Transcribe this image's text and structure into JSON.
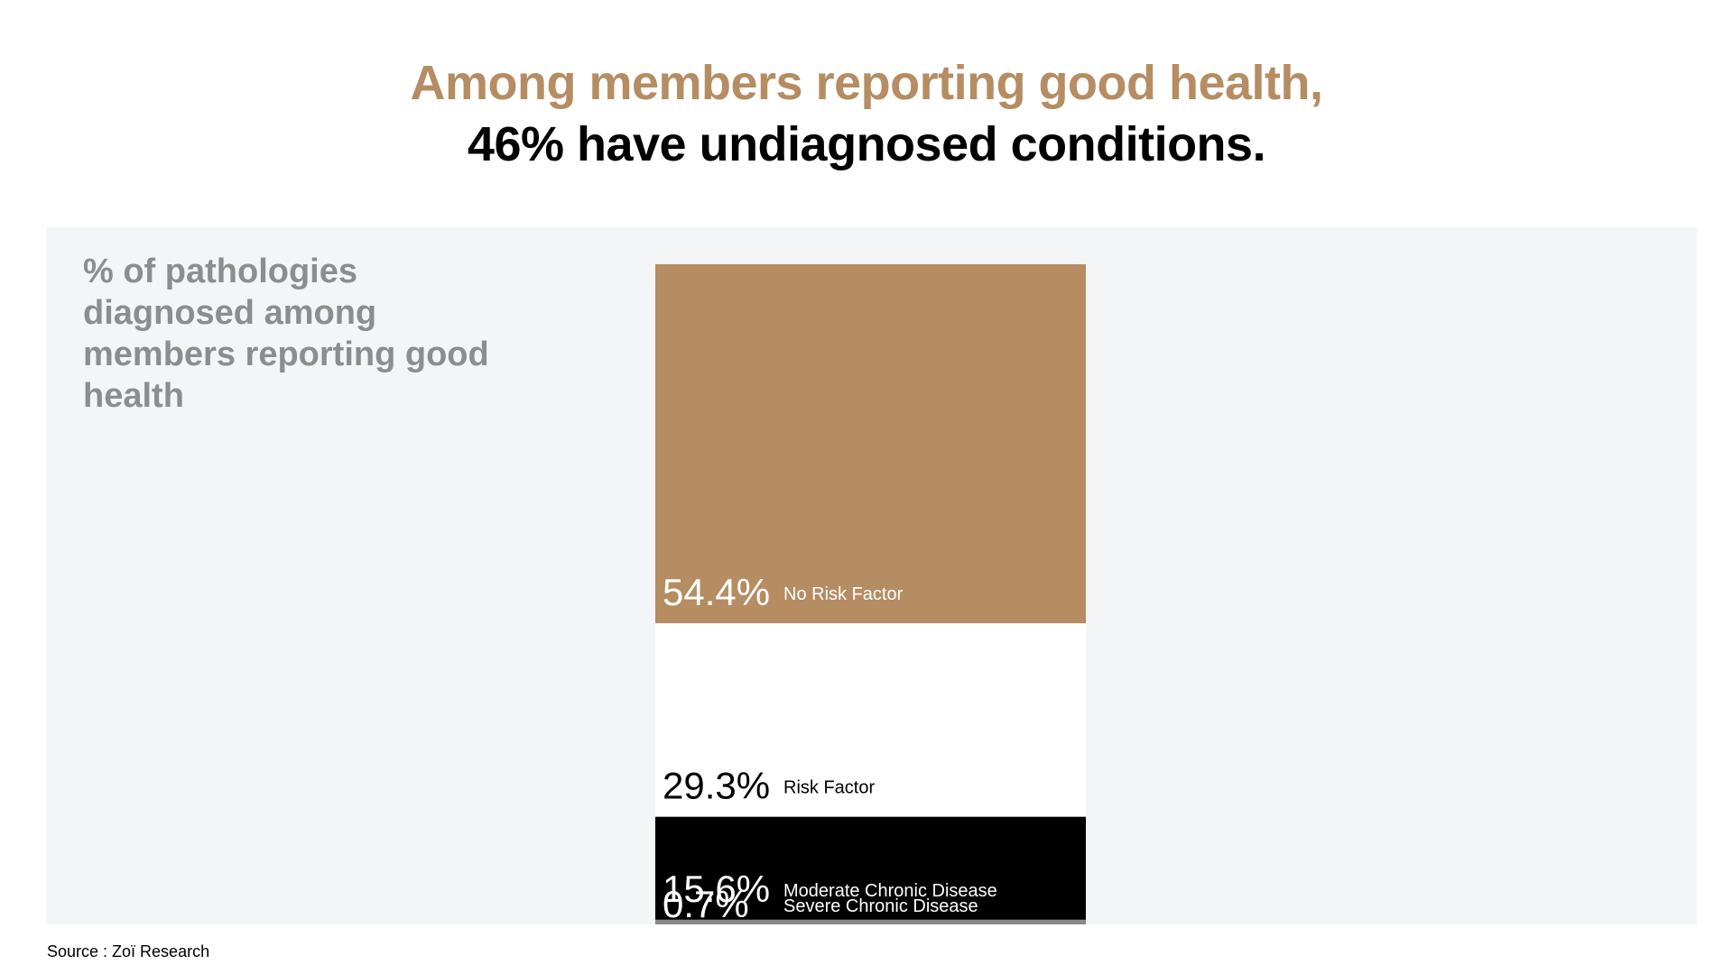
{
  "title": {
    "line1": "Among members reporting good health,",
    "line2": "46% have undiagnosed conditions."
  },
  "subtitle": "% of pathologies diagnosed among members reporting good health",
  "source": "Source : Zoï Research",
  "colors": {
    "accent": "#b68c62",
    "panel_background": "#f4f5f7",
    "subtitle_text": "#8c8d91"
  },
  "chart_data": {
    "type": "bar",
    "stacked": true,
    "orientation": "vertical",
    "unit": "%",
    "series": [
      {
        "name": "No Risk Factor",
        "value": 54.4,
        "label": "54.4%",
        "color": "#b68c62",
        "text_color": "#ffffff"
      },
      {
        "name": "Risk Factor",
        "value": 29.3,
        "label": "29.3%",
        "color": "#ffffff",
        "text_color": "#000000"
      },
      {
        "name": "Moderate Chronic Disease",
        "value": 15.6,
        "label": "15.6%",
        "color": "#000000",
        "text_color": "#ffffff"
      },
      {
        "name": "Severe Chronic Disease",
        "value": 0.7,
        "label": "0.7%",
        "color": "#8a8a8a",
        "text_color": "#ffffff"
      }
    ]
  }
}
